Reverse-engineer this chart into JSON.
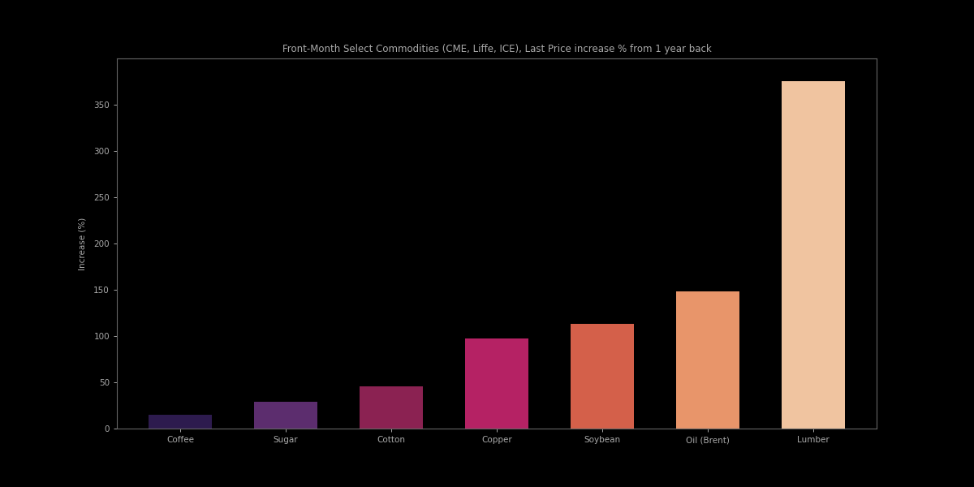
{
  "title": "Front-Month Select Commodities (CME, Liffe, ICE), Last Price increase % from 1 year back",
  "categories": [
    "Coffee",
    "Sugar",
    "Cotton",
    "Copper",
    "Soybean",
    "Oil (Brent)",
    "Lumber"
  ],
  "values": [
    15,
    29,
    46,
    97,
    113,
    148,
    375
  ],
  "bar_colors": [
    "#2D1B4E",
    "#5C2D6E",
    "#8B2252",
    "#B52264",
    "#D4604A",
    "#E8956A",
    "#F0C4A0"
  ],
  "ylabel": "Increase (%)",
  "ylim": [
    0,
    400
  ],
  "yticks": [
    0,
    50,
    100,
    150,
    200,
    250,
    300,
    350
  ],
  "background_color": "#000000",
  "plot_bg_color": "#000000",
  "text_color": "#aaaaaa",
  "spine_color": "#666666",
  "title_fontsize": 8.5,
  "label_fontsize": 7.5,
  "tick_fontsize": 7.5,
  "bar_width": 0.6
}
